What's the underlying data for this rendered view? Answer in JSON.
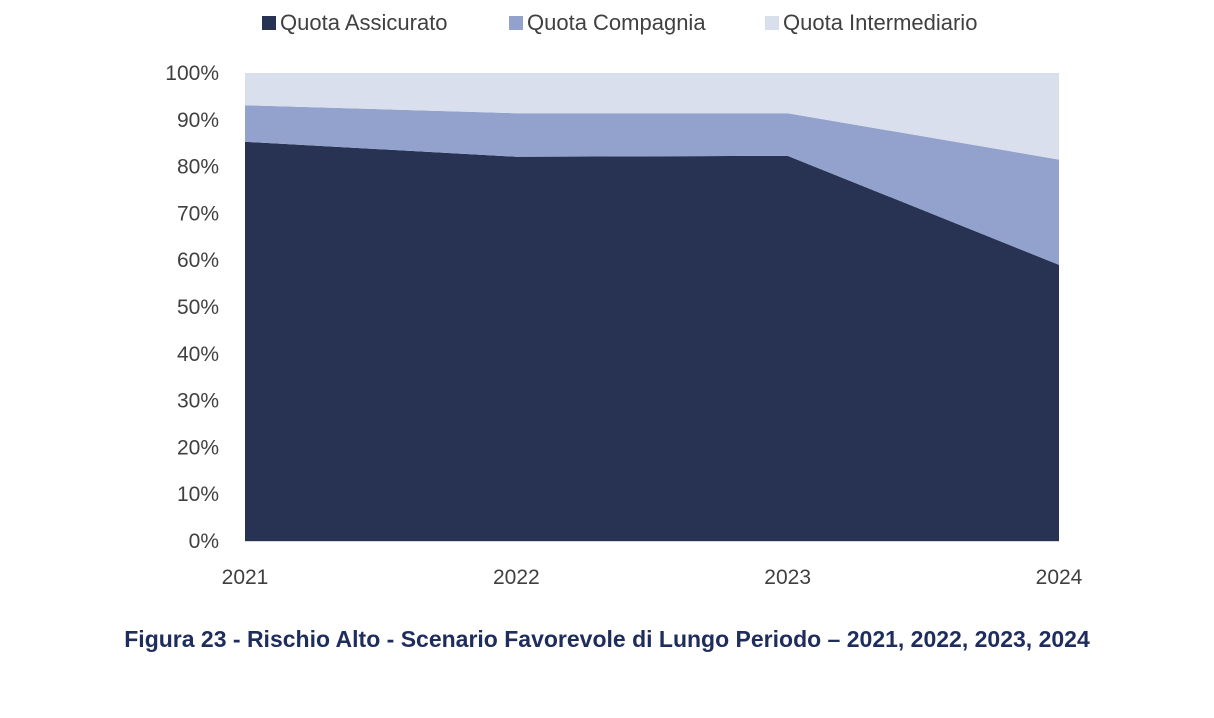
{
  "chart_data": {
    "type": "area",
    "stacked": true,
    "x": [
      "2021",
      "2022",
      "2023",
      "2024"
    ],
    "y_ticks": [
      "0%",
      "10%",
      "20%",
      "30%",
      "40%",
      "50%",
      "60%",
      "70%",
      "80%",
      "90%",
      "100%"
    ],
    "ylim": [
      0,
      100
    ],
    "grid": false,
    "legend_position": "top",
    "series": [
      {
        "name": "Quota Assicurato",
        "values": [
          85.3,
          82.1,
          82.3,
          59.0
        ],
        "color": "#283354"
      },
      {
        "name": "Quota Compagnia",
        "values": [
          7.8,
          9.3,
          9.1,
          22.5
        ],
        "color": "#93a2cc"
      },
      {
        "name": "Quota Intermediario",
        "values": [
          6.9,
          8.6,
          8.6,
          18.5
        ],
        "color": "#d9dfec"
      }
    ]
  },
  "caption": "Figura 23 - Rischio Alto - Scenario Favorevole di Lungo Periodo – 2021, 2022, 2023, 2024"
}
